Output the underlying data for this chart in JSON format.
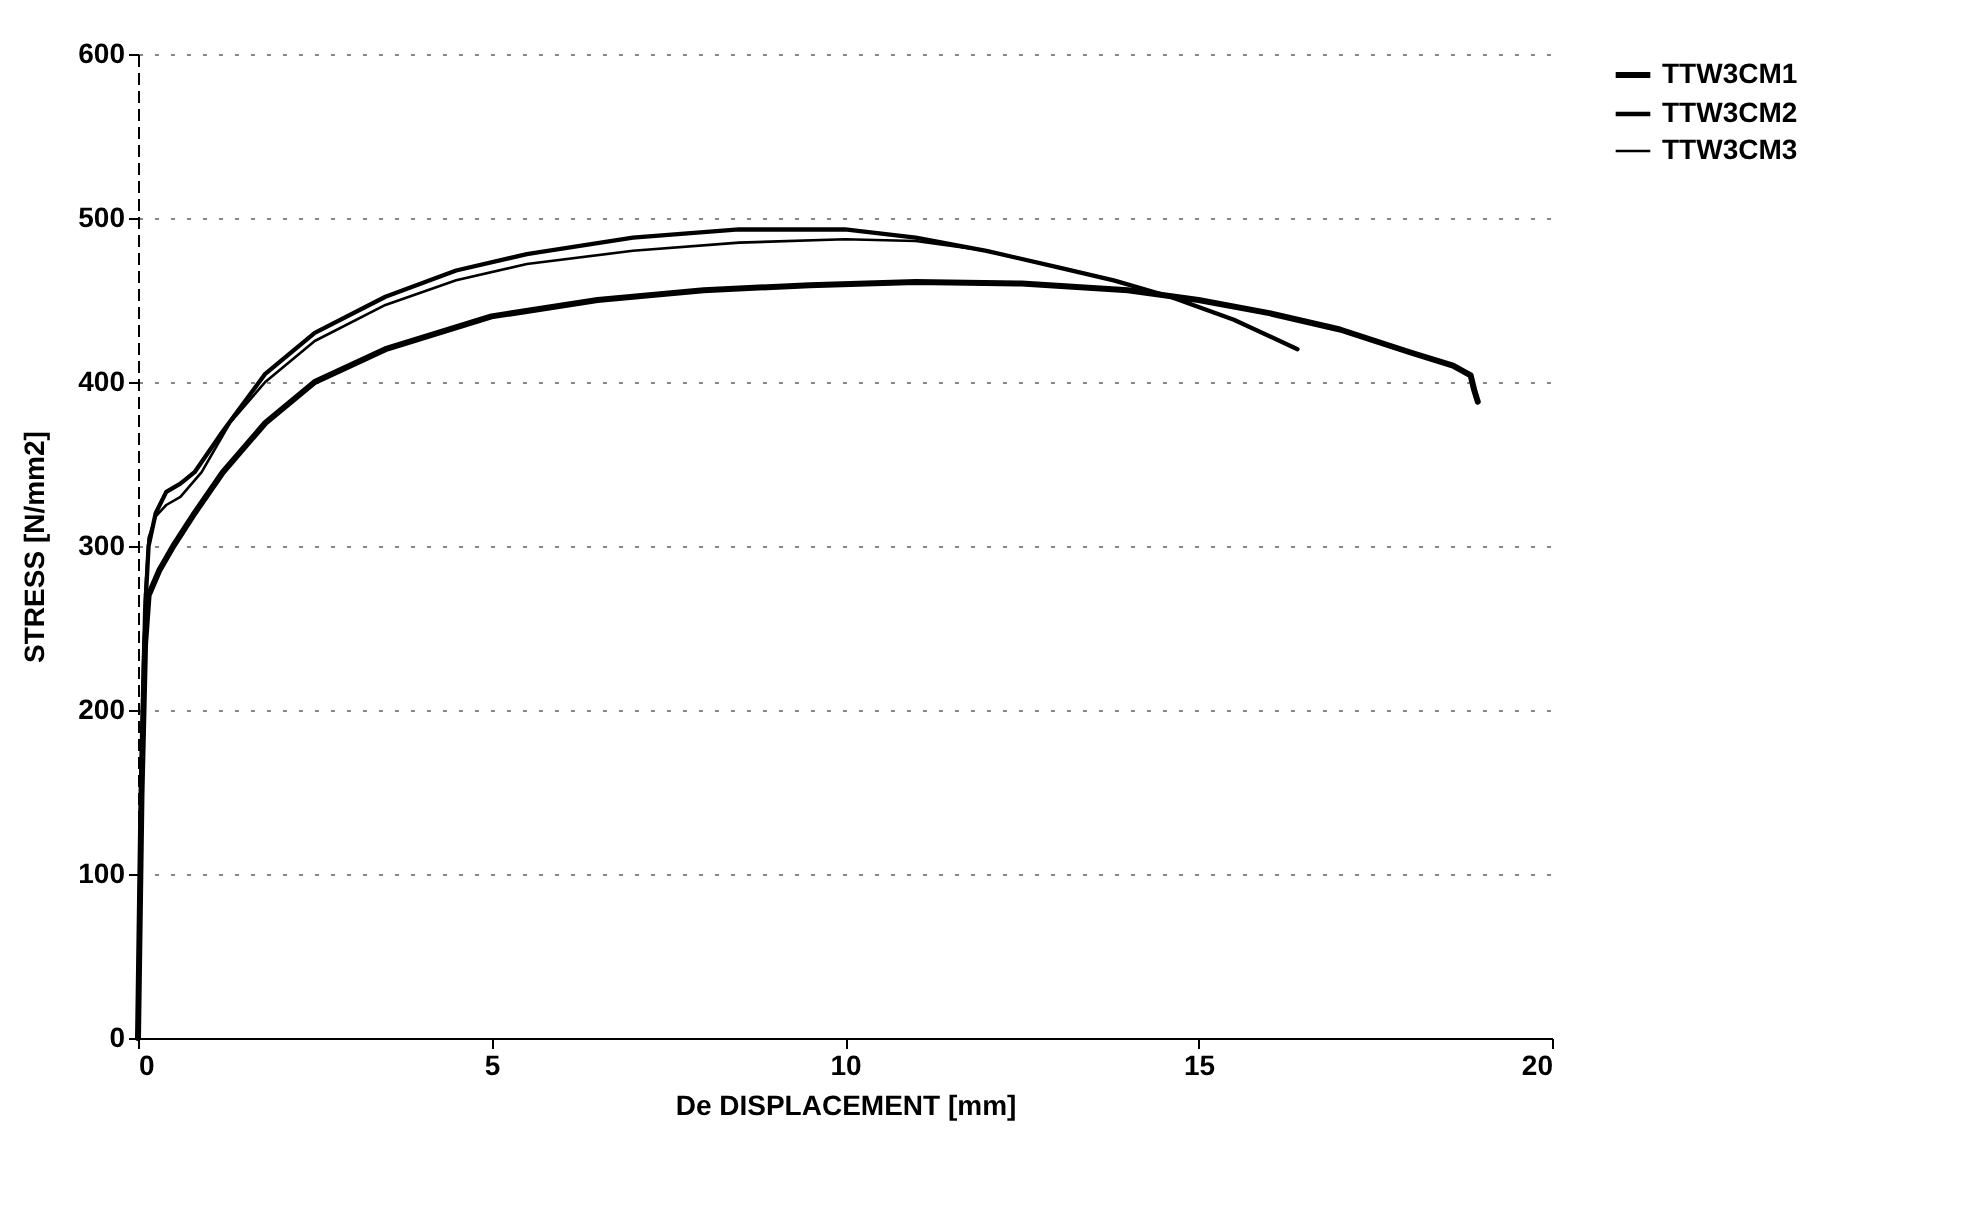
{
  "chart_data": {
    "type": "line",
    "xlabel": "De DISPLACEMENT [mm]",
    "ylabel": "STRESS [N/mm2]",
    "xlim": [
      0,
      20
    ],
    "ylim": [
      0,
      600
    ],
    "xticks": [
      0,
      5,
      10,
      15,
      20
    ],
    "yticks": [
      0,
      100,
      200,
      300,
      400,
      500,
      600
    ],
    "grid": "y",
    "legend": "right",
    "line_style": "solid",
    "marker": "none",
    "series": [
      {
        "name": "TTW3CM1",
        "color": "#000000",
        "x": [
          0,
          0.05,
          0.1,
          0.15,
          0.3,
          0.5,
          0.8,
          1.2,
          1.8,
          2.5,
          3.5,
          5,
          6.5,
          8,
          9.5,
          11,
          12.5,
          14,
          15,
          16,
          17,
          18,
          18.6,
          18.85,
          18.9,
          18.95
        ],
        "values": [
          0,
          150,
          240,
          270,
          285,
          300,
          320,
          345,
          375,
          400,
          420,
          440,
          450,
          456,
          459,
          461,
          460,
          456,
          450,
          442,
          432,
          418,
          410,
          404,
          395,
          388
        ]
      },
      {
        "name": "TTW3CM2",
        "color": "#000000",
        "x": [
          0,
          0.05,
          0.1,
          0.15,
          0.25,
          0.4,
          0.6,
          0.8,
          1.2,
          1.8,
          2.5,
          3.5,
          4.5,
          5.5,
          7,
          8.5,
          10,
          11,
          12,
          13,
          13.8,
          14.6,
          15.5,
          16.4
        ],
        "values": [
          0,
          160,
          260,
          300,
          320,
          333,
          338,
          345,
          370,
          405,
          430,
          452,
          468,
          478,
          488,
          493,
          493,
          488,
          480,
          470,
          462,
          452,
          438,
          420
        ]
      },
      {
        "name": "TTW3CM3",
        "color": "#000000",
        "x": [
          0,
          0.05,
          0.1,
          0.15,
          0.25,
          0.4,
          0.6,
          0.9,
          1.3,
          1.8,
          2.5,
          3.5,
          4.5,
          5.5,
          7,
          8.5,
          10,
          11,
          12,
          13,
          13.8,
          14.6
        ],
        "values": [
          0,
          170,
          270,
          305,
          318,
          325,
          330,
          345,
          375,
          400,
          425,
          447,
          462,
          472,
          480,
          485,
          487,
          486,
          480,
          470,
          462,
          452
        ]
      }
    ]
  }
}
